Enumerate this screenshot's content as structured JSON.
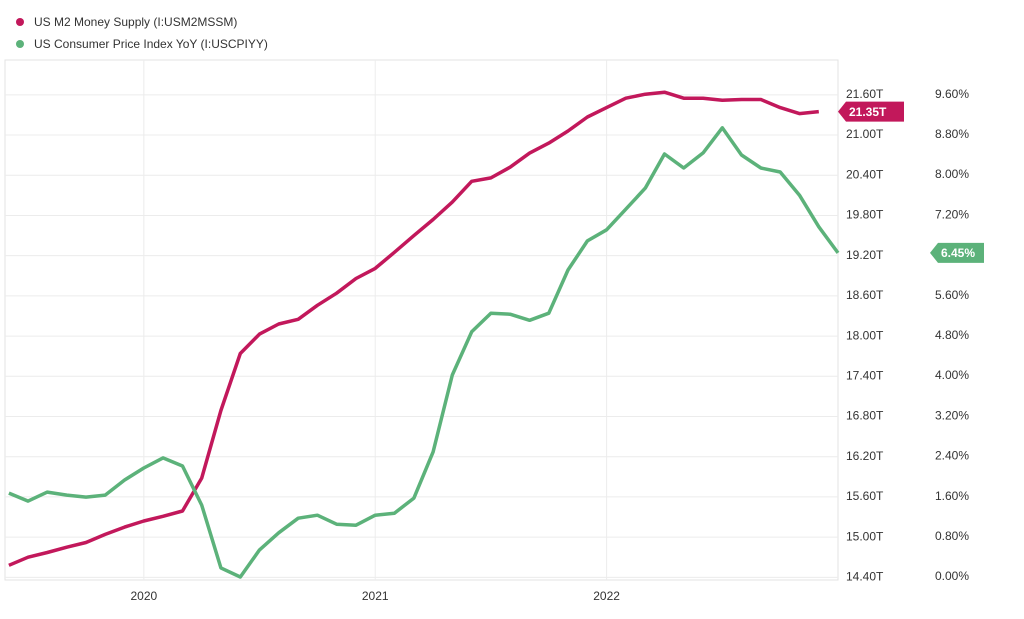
{
  "chart_data": {
    "type": "line",
    "xlim": [
      2019.4,
      2023.0
    ],
    "xticks": [
      2020,
      2021,
      2022
    ],
    "ylim": [
      14.36,
      22.12
    ],
    "yticks": [
      {
        "value": 14.4,
        "label": "14.40T"
      },
      {
        "value": 15.0,
        "label": "15.00T"
      },
      {
        "value": 15.6,
        "label": "15.60T"
      },
      {
        "value": 16.2,
        "label": "16.20T"
      },
      {
        "value": 16.8,
        "label": "16.80T"
      },
      {
        "value": 17.4,
        "label": "17.40T"
      },
      {
        "value": 18.0,
        "label": "18.00T"
      },
      {
        "value": 18.6,
        "label": "18.60T"
      },
      {
        "value": 19.2,
        "label": "19.20T"
      },
      {
        "value": 19.8,
        "label": "19.80T"
      },
      {
        "value": 20.4,
        "label": "20.40T"
      },
      {
        "value": 21.0,
        "label": "21.00T"
      },
      {
        "value": 21.6,
        "label": "21.60T"
      }
    ],
    "y2lim": [
      -0.06,
      10.29
    ],
    "y2ticks": [
      {
        "value": 0,
        "label": "0.00%"
      },
      {
        "value": 0.8,
        "label": "0.80%"
      },
      {
        "value": 1.6,
        "label": "1.60%"
      },
      {
        "value": 2.4,
        "label": "2.40%"
      },
      {
        "value": 3.2,
        "label": "3.20%"
      },
      {
        "value": 4.0,
        "label": "4.00%"
      },
      {
        "value": 4.8,
        "label": "4.80%"
      },
      {
        "value": 5.6,
        "label": "5.60%"
      },
      {
        "value": 6.4,
        "label": "6.40%"
      },
      {
        "value": 7.2,
        "label": "7.20%"
      },
      {
        "value": 8.0,
        "label": "8.00%"
      },
      {
        "value": 8.8,
        "label": "8.80%"
      },
      {
        "value": 9.6,
        "label": "9.60%"
      }
    ],
    "grid": true,
    "legend": "top-left",
    "series": [
      {
        "name": "US M2 Money Supply (I:USM2MSSM)",
        "color": "#c2185b",
        "x": [
          2019.417,
          2019.5,
          2019.583,
          2019.667,
          2019.75,
          2019.833,
          2019.917,
          2020.0,
          2020.083,
          2020.167,
          2020.25,
          2020.333,
          2020.417,
          2020.5,
          2020.583,
          2020.667,
          2020.75,
          2020.833,
          2020.917,
          2021.0,
          2021.083,
          2021.167,
          2021.25,
          2021.333,
          2021.417,
          2021.5,
          2021.583,
          2021.667,
          2021.75,
          2021.833,
          2021.917,
          2022.0,
          2022.083,
          2022.167,
          2022.25,
          2022.333,
          2022.417,
          2022.5,
          2022.583,
          2022.667,
          2022.75,
          2022.833,
          2022.917
        ],
        "values": [
          14.58,
          14.7,
          14.77,
          14.85,
          14.92,
          15.04,
          15.15,
          15.24,
          15.31,
          15.39,
          15.88,
          16.89,
          17.74,
          18.03,
          18.18,
          18.25,
          18.46,
          18.64,
          18.86,
          19.01,
          19.25,
          19.5,
          19.74,
          20.0,
          20.31,
          20.36,
          20.52,
          20.73,
          20.88,
          21.06,
          21.27,
          21.41,
          21.55,
          21.61,
          21.64,
          21.55,
          21.55,
          21.52,
          21.53,
          21.53,
          21.41,
          21.32,
          21.35
        ],
        "value_labels": [
          null,
          null,
          null,
          null,
          null,
          null,
          null,
          null,
          null,
          null,
          null,
          null,
          null,
          null,
          null,
          null,
          null,
          null,
          null,
          null,
          null,
          null,
          null,
          null,
          null,
          null,
          null,
          null,
          null,
          null,
          null,
          null,
          null,
          null,
          null,
          null,
          null,
          null,
          null,
          null,
          null,
          null,
          "21.35T"
        ]
      },
      {
        "name": "US Consumer Price Index YoY (I:USCPIYY)",
        "color": "#5cb27a",
        "axis": "y2",
        "x": [
          2019.417,
          2019.5,
          2019.583,
          2019.667,
          2019.75,
          2019.833,
          2019.917,
          2020.0,
          2020.083,
          2020.167,
          2020.25,
          2020.333,
          2020.417,
          2020.5,
          2020.583,
          2020.667,
          2020.75,
          2020.833,
          2020.917,
          2021.0,
          2021.083,
          2021.167,
          2021.25,
          2021.333,
          2021.417,
          2021.5,
          2021.583,
          2021.667,
          2021.75,
          2021.833,
          2021.917,
          2022.0,
          2022.083,
          2022.167,
          2022.25,
          2022.333,
          2022.417,
          2022.5,
          2022.583,
          2022.667,
          2022.75,
          2022.833,
          2022.917,
          2023.0
        ],
        "values": [
          1.67,
          1.51,
          1.69,
          1.63,
          1.59,
          1.63,
          1.93,
          2.17,
          2.37,
          2.21,
          1.43,
          0.18,
          0.0,
          0.54,
          0.88,
          1.17,
          1.23,
          1.05,
          1.03,
          1.23,
          1.27,
          1.57,
          2.49,
          4.02,
          4.88,
          5.25,
          5.23,
          5.11,
          5.25,
          6.11,
          6.69,
          6.91,
          7.32,
          7.74,
          8.42,
          8.14,
          8.44,
          8.94,
          8.4,
          8.14,
          8.06,
          7.6,
          6.97,
          6.45
        ],
        "value_labels": [
          null,
          null,
          null,
          null,
          null,
          null,
          null,
          null,
          null,
          null,
          null,
          null,
          null,
          null,
          null,
          null,
          null,
          null,
          null,
          null,
          null,
          null,
          null,
          null,
          null,
          null,
          null,
          null,
          null,
          null,
          null,
          null,
          null,
          null,
          null,
          null,
          null,
          null,
          null,
          null,
          null,
          null,
          null,
          "6.45%"
        ]
      }
    ]
  }
}
